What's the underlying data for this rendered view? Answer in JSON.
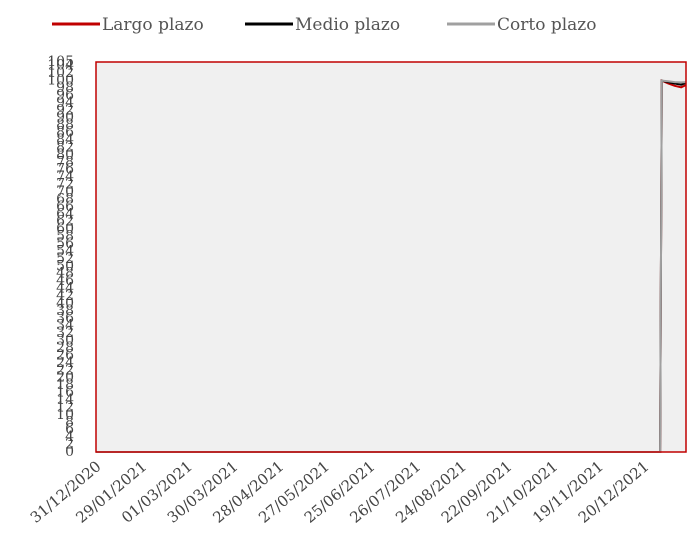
{
  "chart_data": {
    "type": "line",
    "title": "",
    "xlabel": "",
    "ylabel": "",
    "ylim": [
      0,
      105
    ],
    "yticks": [
      0,
      2,
      4,
      6,
      8,
      10,
      12,
      14,
      16,
      18,
      20,
      22,
      24,
      26,
      28,
      30,
      32,
      34,
      36,
      38,
      40,
      42,
      44,
      46,
      48,
      50,
      52,
      54,
      56,
      58,
      60,
      62,
      64,
      66,
      68,
      70,
      72,
      74,
      76,
      78,
      80,
      82,
      84,
      86,
      88,
      90,
      92,
      94,
      96,
      98,
      100,
      102,
      104,
      105
    ],
    "xticks": [
      "31/12/2020",
      "29/01/2021",
      "01/03/2021",
      "30/03/2021",
      "28/04/2021",
      "27/05/2021",
      "25/06/2021",
      "26/07/2021",
      "24/08/2021",
      "22/09/2021",
      "21/10/2021",
      "19/11/2021",
      "20/12/2021"
    ],
    "x_range": [
      "31/12/2020",
      "31/12/2021"
    ],
    "legend_position": "top",
    "grid": false,
    "colors": {
      "plot_background": "#f0f0f0",
      "plot_border": "#c00000"
    },
    "series": [
      {
        "name": "Largo plazo",
        "color": "#c00000",
        "x": [
          "31/12/2020",
          "15/12/2021",
          "16/12/2021",
          "20/12/2021",
          "24/12/2021",
          "28/12/2021",
          "31/12/2021"
        ],
        "values": [
          0,
          0,
          100,
          99.2,
          98.6,
          98.2,
          98.8
        ]
      },
      {
        "name": "Medio plazo",
        "color": "#000000",
        "x": [
          "31/12/2020",
          "15/12/2021",
          "16/12/2021",
          "20/12/2021",
          "24/12/2021",
          "28/12/2021",
          "31/12/2021"
        ],
        "values": [
          0,
          0,
          100,
          99.6,
          99.2,
          98.9,
          99.4
        ]
      },
      {
        "name": "Corto plazo",
        "color": "#a0a0a0",
        "x": [
          "31/12/2020",
          "15/12/2021",
          "16/12/2021",
          "20/12/2021",
          "24/12/2021",
          "28/12/2021",
          "31/12/2021"
        ],
        "values": [
          0,
          0,
          100,
          99.8,
          99.6,
          99.5,
          99.6
        ]
      }
    ]
  }
}
